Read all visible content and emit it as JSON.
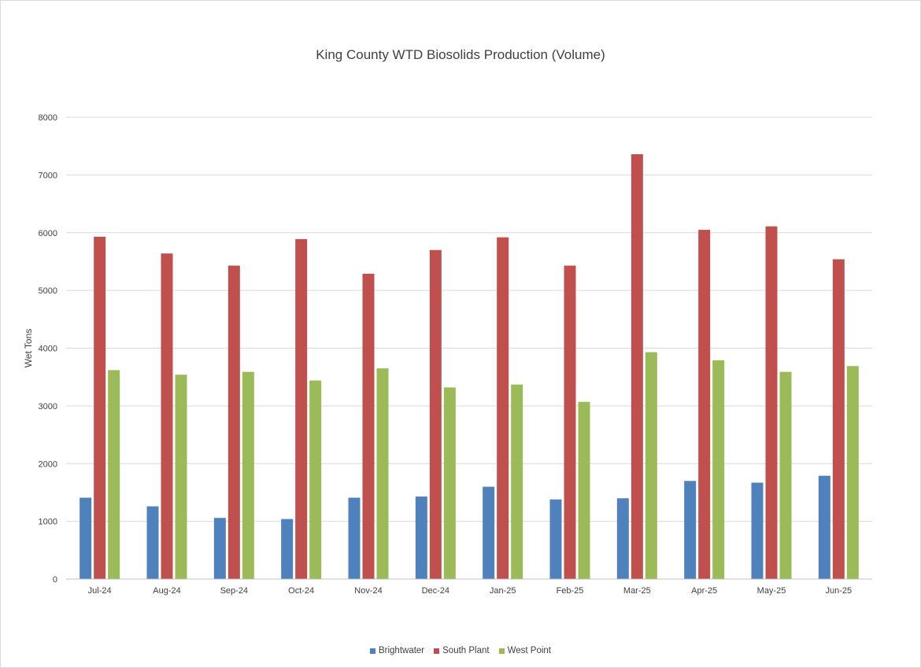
{
  "chart_data": {
    "type": "bar",
    "title": "King County WTD Biosolids Production (Volume)",
    "xlabel": "",
    "ylabel": "Wet Tons",
    "ylim": [
      0,
      8000
    ],
    "yticks": [
      0,
      1000,
      2000,
      3000,
      4000,
      5000,
      6000,
      7000,
      8000
    ],
    "grid": true,
    "legend_position": "bottom",
    "categories": [
      "Jul-24",
      "Aug-24",
      "Sep-24",
      "Oct-24",
      "Nov-24",
      "Dec-24",
      "Jan-25",
      "Feb-25",
      "Mar-25",
      "Apr-25",
      "May-25",
      "Jun-25"
    ],
    "series": [
      {
        "name": "Brightwater",
        "color": "#4f81bd",
        "values": [
          1410,
          1260,
          1060,
          1040,
          1410,
          1430,
          1600,
          1380,
          1400,
          1700,
          1670,
          1790
        ]
      },
      {
        "name": "South Plant",
        "color": "#c0504d",
        "values": [
          5930,
          5640,
          5430,
          5890,
          5290,
          5700,
          5920,
          5430,
          7360,
          6050,
          6110,
          5540
        ]
      },
      {
        "name": "West Point",
        "color": "#9bbb59",
        "values": [
          3620,
          3540,
          3590,
          3440,
          3650,
          3320,
          3370,
          3070,
          3930,
          3790,
          3590,
          3690
        ]
      }
    ]
  }
}
